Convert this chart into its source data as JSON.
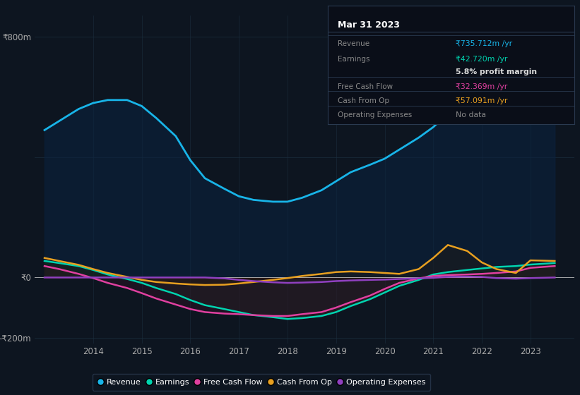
{
  "bg_color": "#0d1520",
  "plot_bg_color": "#0d1520",
  "title": "Mar 31 2023",
  "ylim": [
    -220,
    870
  ],
  "xlim": [
    2012.8,
    2023.9
  ],
  "y_ticks": [
    800,
    0,
    -200
  ],
  "y_tick_labels": [
    "₹800m",
    "₹0",
    "-₹200m"
  ],
  "x_ticks": [
    2014,
    2015,
    2016,
    2017,
    2018,
    2019,
    2020,
    2021,
    2022,
    2023
  ],
  "grid_color": "#1a2e3e",
  "zero_line_color": "#cccccc",
  "legend_items": [
    {
      "label": "Revenue",
      "color": "#18b4e8"
    },
    {
      "label": "Earnings",
      "color": "#00d4b0"
    },
    {
      "label": "Free Cash Flow",
      "color": "#e040a0"
    },
    {
      "label": "Cash From Op",
      "color": "#e8a020"
    },
    {
      "label": "Operating Expenses",
      "color": "#9040c0"
    }
  ],
  "info_box": {
    "title": "Mar 31 2023",
    "rows": [
      {
        "label": "Revenue",
        "value": "₹735.712m /yr",
        "value_color": "#18b4e8"
      },
      {
        "label": "Earnings",
        "value": "₹42.720m /yr",
        "value_color": "#00d4b0"
      },
      {
        "label": "",
        "value": "5.8% profit margin",
        "value_color": "#dddddd",
        "bold": true
      },
      {
        "label": "Free Cash Flow",
        "value": "₹32.369m /yr",
        "value_color": "#e040a0"
      },
      {
        "label": "Cash From Op",
        "value": "₹57.091m /yr",
        "value_color": "#e8a020"
      },
      {
        "label": "Operating Expenses",
        "value": "No data",
        "value_color": "#888888"
      }
    ]
  },
  "years": [
    2013.0,
    2013.3,
    2013.7,
    2014.0,
    2014.3,
    2014.7,
    2015.0,
    2015.3,
    2015.7,
    2016.0,
    2016.3,
    2016.7,
    2017.0,
    2017.3,
    2017.7,
    2018.0,
    2018.3,
    2018.7,
    2019.0,
    2019.3,
    2019.7,
    2020.0,
    2020.3,
    2020.7,
    2021.0,
    2021.3,
    2021.7,
    2022.0,
    2022.3,
    2022.7,
    2023.0,
    2023.5
  ],
  "revenue": [
    490,
    520,
    560,
    580,
    590,
    590,
    570,
    530,
    470,
    390,
    330,
    295,
    270,
    258,
    252,
    252,
    265,
    290,
    320,
    350,
    375,
    395,
    425,
    465,
    500,
    545,
    595,
    635,
    675,
    710,
    736,
    800
  ],
  "earnings": [
    55,
    48,
    38,
    25,
    10,
    -5,
    -18,
    -35,
    -55,
    -75,
    -92,
    -105,
    -115,
    -125,
    -132,
    -138,
    -135,
    -128,
    -115,
    -95,
    -72,
    -50,
    -28,
    -8,
    10,
    18,
    25,
    30,
    35,
    38,
    43,
    48
  ],
  "free_cash_flow": [
    38,
    28,
    12,
    -2,
    -18,
    -35,
    -52,
    -70,
    -90,
    -105,
    -115,
    -120,
    -122,
    -125,
    -128,
    -128,
    -122,
    -115,
    -100,
    -82,
    -60,
    -38,
    -18,
    -3,
    5,
    8,
    10,
    12,
    15,
    20,
    32,
    38
  ],
  "cash_from_op": [
    65,
    55,
    42,
    28,
    15,
    2,
    -8,
    -15,
    -20,
    -23,
    -25,
    -24,
    -20,
    -15,
    -8,
    -2,
    5,
    12,
    18,
    20,
    18,
    15,
    12,
    28,
    65,
    108,
    88,
    50,
    28,
    15,
    57,
    55
  ],
  "operating_expenses": [
    0,
    0,
    0,
    0,
    0,
    0,
    0,
    0,
    0,
    0,
    0,
    -3,
    -8,
    -12,
    -16,
    -18,
    -17,
    -15,
    -12,
    -10,
    -8,
    -7,
    -5,
    -3,
    -1,
    2,
    3,
    2,
    -2,
    -4,
    -2,
    0
  ]
}
